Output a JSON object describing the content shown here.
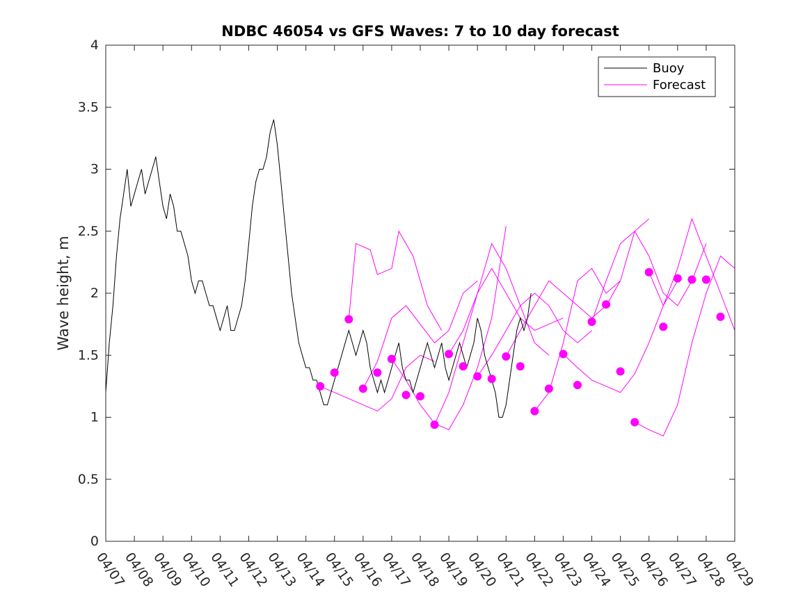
{
  "chart_data": {
    "type": "line",
    "title": "NDBC 46054 vs GFS Waves: 7 to 10 day forecast",
    "xlabel": "",
    "ylabel": "Wave height, m",
    "xlim": [
      "04/07",
      "04/29"
    ],
    "ylim": [
      0,
      4
    ],
    "x_tick_labels": [
      "04/07",
      "04/08",
      "04/09",
      "04/10",
      "04/11",
      "04/12",
      "04/13",
      "04/14",
      "04/15",
      "04/16",
      "04/17",
      "04/18",
      "04/19",
      "04/20",
      "04/21",
      "04/22",
      "04/23",
      "04/24",
      "04/25",
      "04/26",
      "04/27",
      "04/28",
      "04/29"
    ],
    "y_ticks": [
      0,
      0.5,
      1,
      1.5,
      2,
      2.5,
      3,
      3.5,
      4
    ],
    "y_tick_labels": [
      "0",
      "0.5",
      "1",
      "1.5",
      "2",
      "2.5",
      "3",
      "3.5",
      "4"
    ],
    "legend": {
      "position": "top-right",
      "entries": [
        "Buoy",
        "Forecast"
      ]
    },
    "colors": {
      "buoy": "#000000",
      "forecast": "#ff00ff"
    },
    "grid": false,
    "series": [
      {
        "name": "Buoy",
        "points": [
          [
            "04/07 00:00",
            1.2
          ],
          [
            "04/07 03:00",
            1.6
          ],
          [
            "04/07 06:00",
            1.9
          ],
          [
            "04/07 09:00",
            2.3
          ],
          [
            "04/07 12:00",
            2.6
          ],
          [
            "04/07 15:00",
            2.8
          ],
          [
            "04/07 18:00",
            3.0
          ],
          [
            "04/07 21:00",
            2.7
          ],
          [
            "04/08 00:00",
            2.8
          ],
          [
            "04/08 03:00",
            2.9
          ],
          [
            "04/08 06:00",
            3.0
          ],
          [
            "04/08 09:00",
            2.8
          ],
          [
            "04/08 12:00",
            2.9
          ],
          [
            "04/08 15:00",
            3.0
          ],
          [
            "04/08 18:00",
            3.1
          ],
          [
            "04/08 21:00",
            2.9
          ],
          [
            "04/09 00:00",
            2.7
          ],
          [
            "04/09 03:00",
            2.6
          ],
          [
            "04/09 06:00",
            2.8
          ],
          [
            "04/09 09:00",
            2.7
          ],
          [
            "04/09 12:00",
            2.5
          ],
          [
            "04/09 15:00",
            2.5
          ],
          [
            "04/09 18:00",
            2.4
          ],
          [
            "04/09 21:00",
            2.3
          ],
          [
            "04/10 00:00",
            2.1
          ],
          [
            "04/10 03:00",
            2.0
          ],
          [
            "04/10 06:00",
            2.1
          ],
          [
            "04/10 09:00",
            2.1
          ],
          [
            "04/10 12:00",
            2.0
          ],
          [
            "04/10 15:00",
            1.9
          ],
          [
            "04/10 18:00",
            1.9
          ],
          [
            "04/10 21:00",
            1.8
          ],
          [
            "04/11 00:00",
            1.7
          ],
          [
            "04/11 03:00",
            1.8
          ],
          [
            "04/11 06:00",
            1.9
          ],
          [
            "04/11 09:00",
            1.7
          ],
          [
            "04/11 12:00",
            1.7
          ],
          [
            "04/11 15:00",
            1.8
          ],
          [
            "04/11 18:00",
            1.9
          ],
          [
            "04/11 21:00",
            2.1
          ],
          [
            "04/12 00:00",
            2.4
          ],
          [
            "04/12 03:00",
            2.7
          ],
          [
            "04/12 06:00",
            2.9
          ],
          [
            "04/12 09:00",
            3.0
          ],
          [
            "04/12 12:00",
            3.0
          ],
          [
            "04/12 15:00",
            3.1
          ],
          [
            "04/12 18:00",
            3.3
          ],
          [
            "04/12 21:00",
            3.4
          ],
          [
            "04/13 00:00",
            3.2
          ],
          [
            "04/13 03:00",
            2.9
          ],
          [
            "04/13 06:00",
            2.6
          ],
          [
            "04/13 09:00",
            2.3
          ],
          [
            "04/13 12:00",
            2.0
          ],
          [
            "04/13 15:00",
            1.8
          ],
          [
            "04/13 18:00",
            1.6
          ],
          [
            "04/13 21:00",
            1.5
          ],
          [
            "04/14 00:00",
            1.4
          ],
          [
            "04/14 03:00",
            1.4
          ],
          [
            "04/14 06:00",
            1.3
          ],
          [
            "04/14 09:00",
            1.3
          ],
          [
            "04/14 12:00",
            1.2
          ],
          [
            "04/14 15:00",
            1.1
          ],
          [
            "04/14 18:00",
            1.1
          ],
          [
            "04/14 21:00",
            1.2
          ],
          [
            "04/15 00:00",
            1.3
          ],
          [
            "04/15 03:00",
            1.4
          ],
          [
            "04/15 06:00",
            1.5
          ],
          [
            "04/15 09:00",
            1.6
          ],
          [
            "04/15 12:00",
            1.7
          ],
          [
            "04/15 15:00",
            1.6
          ],
          [
            "04/15 18:00",
            1.5
          ],
          [
            "04/15 21:00",
            1.6
          ],
          [
            "04/16 00:00",
            1.7
          ],
          [
            "04/16 03:00",
            1.6
          ],
          [
            "04/16 06:00",
            1.4
          ],
          [
            "04/16 09:00",
            1.3
          ],
          [
            "04/16 12:00",
            1.2
          ],
          [
            "04/16 15:00",
            1.3
          ],
          [
            "04/16 18:00",
            1.2
          ],
          [
            "04/16 21:00",
            1.3
          ],
          [
            "04/17 00:00",
            1.4
          ],
          [
            "04/17 03:00",
            1.5
          ],
          [
            "04/17 06:00",
            1.6
          ],
          [
            "04/17 09:00",
            1.4
          ],
          [
            "04/17 12:00",
            1.3
          ],
          [
            "04/17 15:00",
            1.3
          ],
          [
            "04/17 18:00",
            1.2
          ],
          [
            "04/17 21:00",
            1.3
          ],
          [
            "04/18 00:00",
            1.4
          ],
          [
            "04/18 03:00",
            1.5
          ],
          [
            "04/18 06:00",
            1.6
          ],
          [
            "04/18 09:00",
            1.5
          ],
          [
            "04/18 12:00",
            1.4
          ],
          [
            "04/18 15:00",
            1.5
          ],
          [
            "04/18 18:00",
            1.6
          ],
          [
            "04/18 21:00",
            1.4
          ],
          [
            "04/19 00:00",
            1.3
          ],
          [
            "04/19 03:00",
            1.4
          ],
          [
            "04/19 06:00",
            1.5
          ],
          [
            "04/19 09:00",
            1.6
          ],
          [
            "04/19 12:00",
            1.5
          ],
          [
            "04/19 15:00",
            1.4
          ],
          [
            "04/19 18:00",
            1.5
          ],
          [
            "04/19 21:00",
            1.6
          ],
          [
            "04/20 00:00",
            1.8
          ],
          [
            "04/20 03:00",
            1.7
          ],
          [
            "04/20 06:00",
            1.5
          ],
          [
            "04/20 09:00",
            1.4
          ],
          [
            "04/20 12:00",
            1.3
          ],
          [
            "04/20 15:00",
            1.2
          ],
          [
            "04/20 18:00",
            1.0
          ],
          [
            "04/20 21:00",
            1.0
          ],
          [
            "04/21 00:00",
            1.1
          ],
          [
            "04/21 03:00",
            1.3
          ],
          [
            "04/21 06:00",
            1.5
          ],
          [
            "04/21 09:00",
            1.7
          ],
          [
            "04/21 12:00",
            1.8
          ],
          [
            "04/21 15:00",
            1.7
          ],
          [
            "04/21 18:00",
            1.8
          ],
          [
            "04/21 21:00",
            2.0
          ]
        ]
      },
      {
        "name": "Forecast",
        "runs": [
          [
            [
              "04/14 12:00",
              1.25
            ],
            [
              "04/15 00:00",
              1.2
            ],
            [
              "04/15 12:00",
              1.15
            ],
            [
              "04/16 00:00",
              1.1
            ],
            [
              "04/16 12:00",
              1.05
            ],
            [
              "04/17 00:00",
              1.15
            ],
            [
              "04/17 12:00",
              1.4
            ],
            [
              "04/18 00:00",
              1.5
            ],
            [
              "04/18 12:00",
              1.45
            ]
          ],
          [
            [
              "04/15 12:00",
              1.79
            ],
            [
              "04/15 18:00",
              2.4
            ],
            [
              "04/16 06:00",
              2.35
            ],
            [
              "04/16 12:00",
              2.15
            ],
            [
              "04/17 00:00",
              2.2
            ],
            [
              "04/17 06:00",
              2.5
            ],
            [
              "04/17 18:00",
              2.3
            ],
            [
              "04/18 06:00",
              1.9
            ],
            [
              "04/18 18:00",
              1.7
            ]
          ],
          [
            [
              "04/16 00:00",
              1.23
            ],
            [
              "04/16 12:00",
              1.45
            ],
            [
              "04/17 00:00",
              1.8
            ],
            [
              "04/17 12:00",
              1.9
            ],
            [
              "04/18 00:00",
              1.75
            ],
            [
              "04/18 12:00",
              1.6
            ],
            [
              "04/19 00:00",
              1.7
            ],
            [
              "04/19 12:00",
              2.0
            ],
            [
              "04/20 00:00",
              2.1
            ]
          ],
          [
            [
              "04/17 00:00",
              1.47
            ],
            [
              "04/17 12:00",
              1.3
            ],
            [
              "04/18 00:00",
              1.1
            ],
            [
              "04/18 12:00",
              0.95
            ],
            [
              "04/19 00:00",
              0.9
            ],
            [
              "04/19 12:00",
              1.1
            ],
            [
              "04/20 00:00",
              1.4
            ],
            [
              "04/20 12:00",
              1.8
            ],
            [
              "04/21 00:00",
              2.54
            ]
          ],
          [
            [
              "04/18 12:00",
              0.94
            ],
            [
              "04/19 00:00",
              1.2
            ],
            [
              "04/19 12:00",
              1.6
            ],
            [
              "04/20 00:00",
              2.0
            ],
            [
              "04/20 12:00",
              2.4
            ],
            [
              "04/21 00:00",
              2.2
            ],
            [
              "04/21 12:00",
              1.9
            ],
            [
              "04/22 00:00",
              1.6
            ],
            [
              "04/22 12:00",
              1.5
            ]
          ],
          [
            [
              "04/19 00:00",
              1.51
            ],
            [
              "04/19 12:00",
              1.7
            ],
            [
              "04/20 00:00",
              2.0
            ],
            [
              "04/20 12:00",
              2.2
            ],
            [
              "04/21 00:00",
              2.0
            ],
            [
              "04/21 12:00",
              1.8
            ],
            [
              "04/22 00:00",
              1.7
            ],
            [
              "04/22 12:00",
              1.75
            ],
            [
              "04/23 00:00",
              1.8
            ]
          ],
          [
            [
              "04/20 00:00",
              1.33
            ],
            [
              "04/20 12:00",
              1.5
            ],
            [
              "04/21 00:00",
              1.7
            ],
            [
              "04/21 12:00",
              1.9
            ],
            [
              "04/22 00:00",
              2.0
            ],
            [
              "04/22 12:00",
              1.9
            ],
            [
              "04/23 00:00",
              1.7
            ],
            [
              "04/23 12:00",
              1.6
            ],
            [
              "04/24 00:00",
              1.7
            ]
          ],
          [
            [
              "04/21 00:00",
              1.49
            ],
            [
              "04/21 12:00",
              1.7
            ],
            [
              "04/22 00:00",
              1.9
            ],
            [
              "04/22 12:00",
              2.1
            ],
            [
              "04/23 00:00",
              2.0
            ],
            [
              "04/23 12:00",
              1.9
            ],
            [
              "04/24 00:00",
              1.8
            ],
            [
              "04/24 12:00",
              1.9
            ],
            [
              "04/25 00:00",
              2.1
            ]
          ],
          [
            [
              "04/22 00:00",
              1.05
            ],
            [
              "04/22 12:00",
              1.2
            ],
            [
              "04/23 00:00",
              1.6
            ],
            [
              "04/23 12:00",
              2.1
            ],
            [
              "04/24 00:00",
              2.2
            ],
            [
              "04/24 12:00",
              2.0
            ],
            [
              "04/25 00:00",
              2.1
            ],
            [
              "04/25 12:00",
              2.5
            ],
            [
              "04/26 00:00",
              2.6
            ]
          ],
          [
            [
              "04/23 00:00",
              1.51
            ],
            [
              "04/23 12:00",
              1.4
            ],
            [
              "04/24 00:00",
              1.3
            ],
            [
              "04/24 12:00",
              1.25
            ],
            [
              "04/25 00:00",
              1.2
            ],
            [
              "04/25 12:00",
              1.35
            ],
            [
              "04/26 00:00",
              1.6
            ],
            [
              "04/26 12:00",
              1.9
            ],
            [
              "04/27 00:00",
              2.1
            ]
          ],
          [
            [
              "04/24 00:00",
              1.77
            ],
            [
              "04/24 12:00",
              2.1
            ],
            [
              "04/25 00:00",
              2.4
            ],
            [
              "04/25 12:00",
              2.5
            ],
            [
              "04/26 00:00",
              2.3
            ],
            [
              "04/26 12:00",
              2.0
            ],
            [
              "04/27 00:00",
              1.9
            ],
            [
              "04/27 12:00",
              2.1
            ],
            [
              "04/28 00:00",
              2.4
            ]
          ],
          [
            [
              "04/25 12:00",
              0.96
            ],
            [
              "04/26 00:00",
              0.9
            ],
            [
              "04/26 12:00",
              0.85
            ],
            [
              "04/27 00:00",
              1.1
            ],
            [
              "04/27 12:00",
              1.6
            ],
            [
              "04/28 00:00",
              2.0
            ],
            [
              "04/28 12:00",
              2.3
            ],
            [
              "04/29 00:00",
              2.2
            ]
          ],
          [
            [
              "04/26 00:00",
              2.17
            ],
            [
              "04/26 12:00",
              1.9
            ],
            [
              "04/27 00:00",
              2.2
            ],
            [
              "04/27 12:00",
              2.6
            ],
            [
              "04/28 00:00",
              2.3
            ],
            [
              "04/28 12:00",
              2.0
            ],
            [
              "04/29 00:00",
              1.7
            ]
          ]
        ]
      }
    ],
    "forecast_markers": [
      [
        "04/14 12:00",
        1.25
      ],
      [
        "04/15 00:00",
        1.36
      ],
      [
        "04/15 12:00",
        1.79
      ],
      [
        "04/16 00:00",
        1.23
      ],
      [
        "04/16 12:00",
        1.36
      ],
      [
        "04/17 00:00",
        1.47
      ],
      [
        "04/17 12:00",
        1.18
      ],
      [
        "04/18 00:00",
        1.17
      ],
      [
        "04/18 12:00",
        0.94
      ],
      [
        "04/19 00:00",
        1.51
      ],
      [
        "04/19 12:00",
        1.41
      ],
      [
        "04/20 00:00",
        1.33
      ],
      [
        "04/20 12:00",
        1.31
      ],
      [
        "04/21 00:00",
        1.49
      ],
      [
        "04/21 12:00",
        1.41
      ],
      [
        "04/22 00:00",
        1.05
      ],
      [
        "04/22 12:00",
        1.23
      ],
      [
        "04/23 00:00",
        1.51
      ],
      [
        "04/23 12:00",
        1.26
      ],
      [
        "04/24 00:00",
        1.77
      ],
      [
        "04/24 12:00",
        1.91
      ],
      [
        "04/25 00:00",
        1.37
      ],
      [
        "04/25 12:00",
        0.96
      ],
      [
        "04/26 00:00",
        2.17
      ],
      [
        "04/26 12:00",
        1.73
      ],
      [
        "04/27 00:00",
        2.12
      ],
      [
        "04/27 12:00",
        2.11
      ],
      [
        "04/28 00:00",
        2.11
      ],
      [
        "04/28 12:00",
        1.81
      ]
    ]
  }
}
